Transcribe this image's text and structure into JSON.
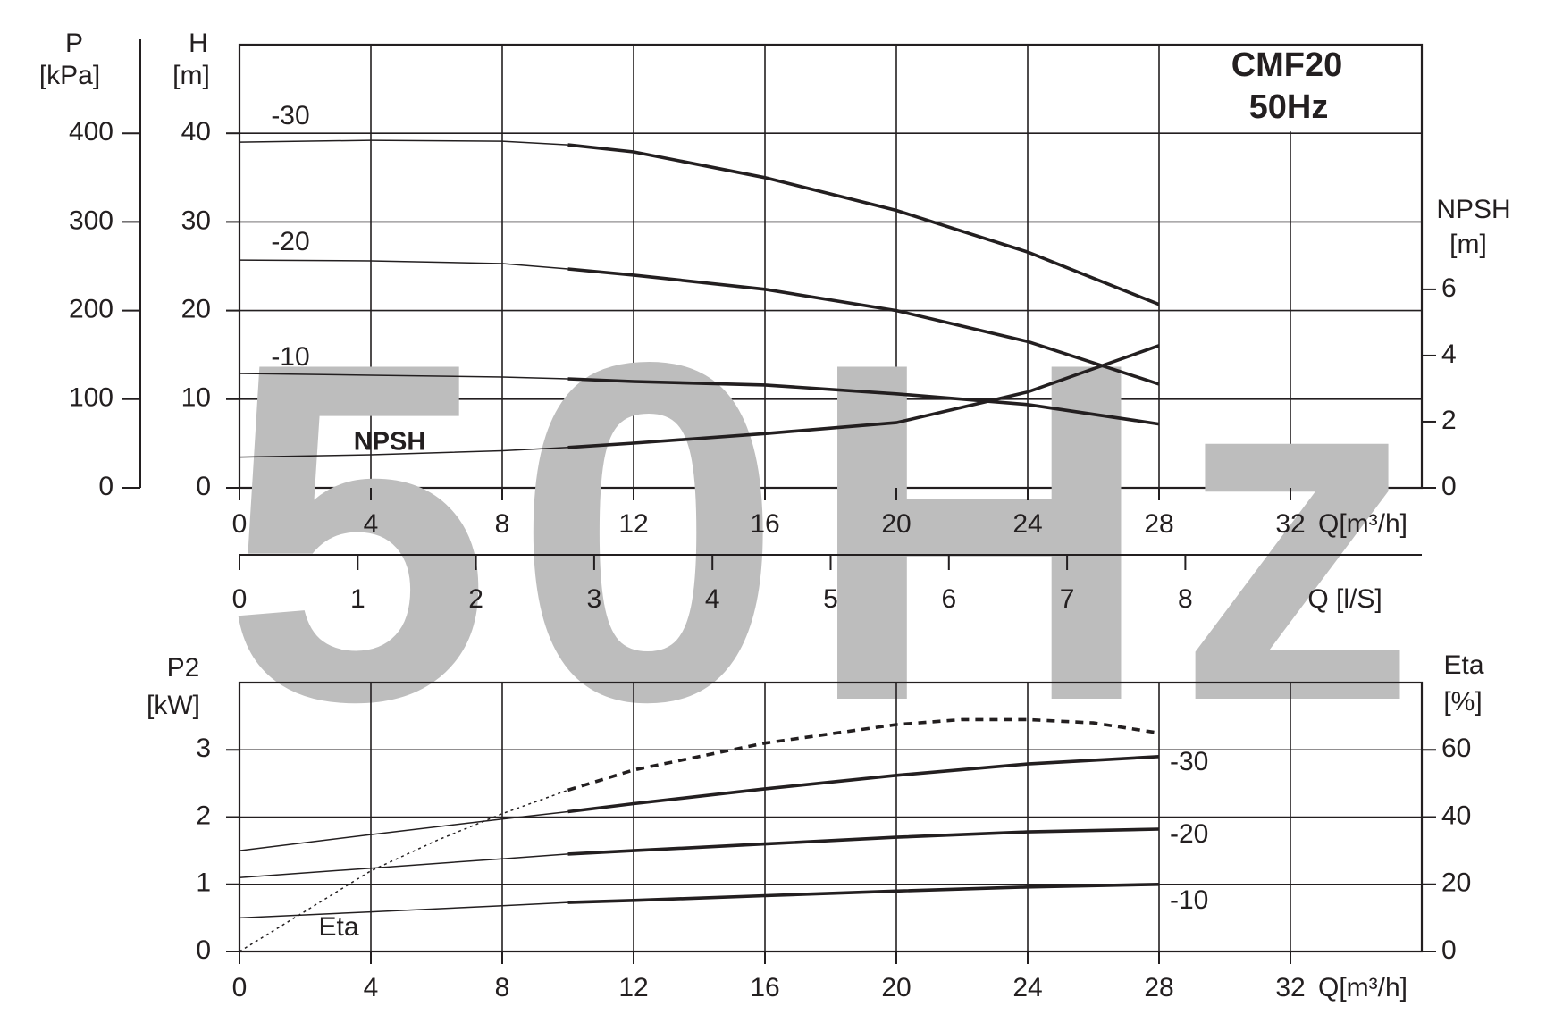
{
  "chart_data": [
    {
      "type": "line",
      "title": "CMF20",
      "subtitle": "50Hz",
      "watermark": "50Hz",
      "xlabel": "Q[m³/h]",
      "xlim": [
        0,
        36
      ],
      "xticks": [
        0,
        4,
        8,
        12,
        16,
        20,
        24,
        28,
        32
      ],
      "x2label": "Q [l/S]",
      "x2lim": [
        0,
        10
      ],
      "x2ticks": [
        0,
        1,
        2,
        3,
        4,
        5,
        6,
        7,
        8
      ],
      "ylabel": [
        "H",
        "[m]"
      ],
      "ylim": [
        0,
        50
      ],
      "yticks": [
        0,
        10,
        20,
        30,
        40
      ],
      "y3label": [
        "P",
        "[kPa]"
      ],
      "y3lim": [
        0,
        500
      ],
      "y3ticks": [
        0,
        100,
        200,
        300,
        400
      ],
      "y2label": [
        "NPSH",
        "[m]"
      ],
      "y2lim": [
        0,
        13.4
      ],
      "y2ticks": [
        0,
        2,
        4,
        6
      ],
      "grid": true,
      "bold_from_x": 10,
      "series": [
        {
          "name": "-30",
          "color": "#231f20",
          "x": [
            0,
            4,
            8,
            10,
            12,
            16,
            20,
            24,
            28
          ],
          "values": [
            39,
            39.2,
            39.1,
            38.7,
            37.9,
            35,
            31.3,
            26.6,
            20.7
          ]
        },
        {
          "name": "-20",
          "color": "#231f20",
          "x": [
            0,
            4,
            8,
            10,
            12,
            16,
            20,
            24,
            28
          ],
          "values": [
            25.7,
            25.6,
            25.3,
            24.7,
            24,
            22.4,
            20,
            16.5,
            11.7
          ]
        },
        {
          "name": "-10",
          "color": "#231f20",
          "x": [
            0,
            4,
            8,
            10,
            12,
            16,
            20,
            24,
            28
          ],
          "values": [
            12.9,
            12.7,
            12.5,
            12.3,
            12,
            11.6,
            10.6,
            9.4,
            7.2
          ]
        },
        {
          "name": "NPSH",
          "color": "#231f20",
          "axis": "y2",
          "x": [
            0,
            4,
            8,
            10,
            12,
            16,
            20,
            24,
            28
          ],
          "values": [
            0.93,
            1.0,
            1.12,
            1.22,
            1.35,
            1.64,
            1.97,
            2.9,
            4.3
          ]
        }
      ]
    },
    {
      "type": "line",
      "xlabel": "Q[m³/h]",
      "xlim": [
        0,
        36
      ],
      "xticks": [
        0,
        4,
        8,
        12,
        16,
        20,
        24,
        28,
        32
      ],
      "ylabel": [
        "P2",
        "[kW]"
      ],
      "ylim": [
        0,
        4
      ],
      "yticks": [
        0,
        1,
        2,
        3
      ],
      "y2label": [
        "Eta",
        "[%]"
      ],
      "y2lim": [
        0,
        80
      ],
      "y2ticks": [
        0,
        20,
        40,
        60
      ],
      "grid": true,
      "bold_from_x": 10,
      "series": [
        {
          "name": "-30",
          "color": "#231f20",
          "x": [
            0,
            4,
            8,
            10,
            12,
            16,
            20,
            24,
            28
          ],
          "values": [
            1.5,
            1.74,
            1.97,
            2.08,
            2.2,
            2.42,
            2.62,
            2.79,
            2.9
          ]
        },
        {
          "name": "-20",
          "color": "#231f20",
          "x": [
            0,
            4,
            8,
            10,
            12,
            16,
            20,
            24,
            28
          ],
          "values": [
            1.1,
            1.24,
            1.38,
            1.45,
            1.5,
            1.6,
            1.7,
            1.78,
            1.82
          ]
        },
        {
          "name": "-10",
          "color": "#231f20",
          "x": [
            0,
            4,
            8,
            10,
            12,
            16,
            20,
            24,
            28
          ],
          "values": [
            0.5,
            0.59,
            0.68,
            0.73,
            0.76,
            0.83,
            0.9,
            0.96,
            1.0
          ]
        },
        {
          "name": "Eta",
          "color": "#231f20",
          "axis": "y2",
          "line_style": "dotted",
          "x": [
            0,
            2,
            4,
            6,
            8,
            10,
            12,
            16,
            20,
            22,
            24,
            26,
            28
          ],
          "values": [
            0,
            12,
            24,
            33,
            41,
            48,
            54,
            62,
            67.5,
            69,
            69,
            68,
            65
          ]
        }
      ]
    }
  ]
}
